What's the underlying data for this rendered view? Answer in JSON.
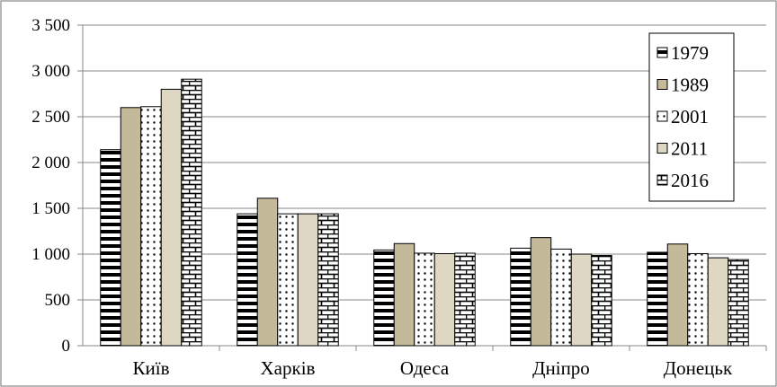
{
  "chart_data": {
    "type": "bar",
    "title": "",
    "xlabel": "",
    "ylabel": "",
    "categories": [
      "Київ",
      "Харків",
      "Одеса",
      "Дніпро",
      "Донецьк"
    ],
    "ylim": [
      0,
      3500
    ],
    "yticks": [
      0,
      500,
      1000,
      1500,
      2000,
      2500,
      3000,
      3500
    ],
    "ytick_labels": [
      "0",
      "500",
      "1 000",
      "1 500",
      "2 000",
      "2 500",
      "3 000",
      "3 500"
    ],
    "grid": true,
    "legend_position": "right",
    "series": [
      {
        "name": "1979",
        "pattern": "horizontal-stripes",
        "values": [
          2140,
          1440,
          1045,
          1065,
          1020
        ]
      },
      {
        "name": "1989",
        "pattern": "solid-tan",
        "values": [
          2600,
          1610,
          1115,
          1180,
          1110
        ]
      },
      {
        "name": "2001",
        "pattern": "dots",
        "values": [
          2610,
          1440,
          1010,
          1055,
          1005
        ]
      },
      {
        "name": "2011",
        "pattern": "solid-light-tan",
        "values": [
          2800,
          1440,
          1005,
          1000,
          960
        ]
      },
      {
        "name": "2016",
        "pattern": "brick",
        "values": [
          2910,
          1440,
          1010,
          985,
          940
        ]
      }
    ],
    "colors": {
      "tan": "#c4b998",
      "light_tan": "#ddd7c3",
      "grid": "#878787",
      "axis": "#878787",
      "border": "#878787"
    }
  }
}
